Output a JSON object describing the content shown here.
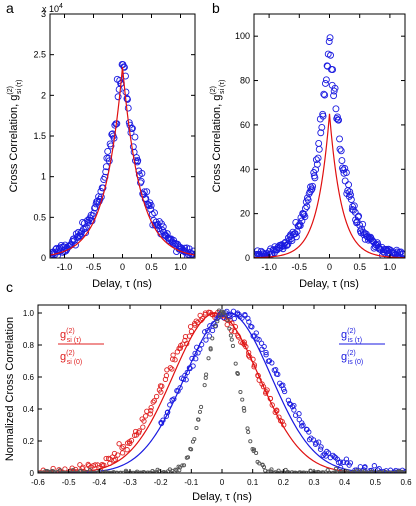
{
  "colors": {
    "data_blue": "#1a1ae0",
    "fit_red": "#e01010",
    "red_points": "#e02020",
    "gray": "#555555",
    "axis": "#000000"
  },
  "chart_data": [
    {
      "panel": "a",
      "type": "scatter",
      "xlabel": "Delay, τ (ns)",
      "ylabel": "Cross Correlation, g",
      "ylabel_sup": "(2)",
      "ylabel_sub": "si (τ)",
      "y_multiplier": "x 10",
      "y_multiplier_exp": "4",
      "xlim": [
        -1.25,
        1.25
      ],
      "ylim": [
        0,
        3
      ],
      "xticks": [
        -1.0,
        -0.5,
        0,
        0.5,
        1.0
      ],
      "xtick_labels": [
        "-1.0",
        "-0.5",
        "0",
        "0.5",
        "1.0"
      ],
      "yticks": [
        0,
        0.5,
        1,
        1.5,
        2,
        2.5,
        3
      ],
      "ytick_labels": [
        "0",
        "0.5",
        "1",
        "1.5",
        "2",
        "2.5",
        "3"
      ],
      "series": [
        {
          "role": "points",
          "marker": "circle",
          "color": "#1a1ae0",
          "peak": 2.45,
          "tau": 0.34,
          "x_range": [
            -1.22,
            1.22
          ],
          "count": 180
        },
        {
          "role": "fit",
          "marker": "line",
          "color": "#e01010",
          "peak": 2.35,
          "tau": 0.3
        }
      ]
    },
    {
      "panel": "b",
      "type": "scatter",
      "xlabel": "Delay, τ (ns)",
      "ylabel": "Cross Correlation, g",
      "ylabel_sup": "(2)",
      "ylabel_sub": "si (τ)",
      "xlim": [
        -1.25,
        1.25
      ],
      "ylim": [
        0,
        110
      ],
      "xticks": [
        -1.0,
        -0.5,
        0,
        0.5,
        1.0
      ],
      "xtick_labels": [
        "-1.0",
        "-0.5",
        "0",
        "0.5",
        "1.0"
      ],
      "yticks": [
        0,
        20,
        40,
        60,
        80,
        100
      ],
      "ytick_labels": [
        "0",
        "20",
        "40",
        "60",
        "80",
        "100"
      ],
      "series": [
        {
          "role": "points",
          "marker": "circle",
          "color": "#1a1ae0",
          "peak": 98,
          "tau": 0.27,
          "x_range": [
            -1.22,
            1.22
          ],
          "count": 200
        },
        {
          "role": "fit",
          "marker": "line",
          "color": "#e01010",
          "peak": 65,
          "tau": 0.2
        }
      ]
    },
    {
      "panel": "c",
      "type": "scatter",
      "xlabel": "Delay, τ (ns)",
      "ylabel": "Normalized Cross Correlation",
      "xlim": [
        -0.6,
        0.6
      ],
      "ylim": [
        0,
        1.05
      ],
      "xticks": [
        -0.6,
        -0.5,
        -0.4,
        -0.3,
        -0.2,
        -0.1,
        0,
        0.1,
        0.2,
        0.3,
        0.4,
        0.5,
        0.6
      ],
      "xtick_labels": [
        "-0.6",
        "-0.5",
        "-0.4",
        "-0.3",
        "-0.2",
        "-0.1",
        "0",
        "0.1",
        "0.2",
        "0.3",
        "0.4",
        "0.5",
        "0.6"
      ],
      "yticks": [
        0,
        0.2,
        0.4,
        0.6,
        0.8,
        1.0
      ],
      "ytick_labels": [
        "0",
        "0.2",
        "0.4",
        "0.6",
        "0.8",
        "1.0"
      ],
      "legend_left": {
        "num": "g",
        "num_sup": "(2)",
        "num_sub": "si (τ)",
        "den": "g",
        "den_sup": "(2)",
        "den_sub": "si (0)",
        "color": "#e02020"
      },
      "legend_right": {
        "num": "g",
        "num_sup": "(2)",
        "num_sub": "is (τ)",
        "den": "g",
        "den_sup": "(2)",
        "den_sub": "is (0)",
        "color": "#1a1ae0"
      },
      "series": [
        {
          "role": "red_points",
          "marker": "circle",
          "color": "#e02020",
          "center": -0.03,
          "sigma": 0.15,
          "x_range": [
            -0.6,
            0.2
          ],
          "count": 160
        },
        {
          "role": "red_fit",
          "marker": "line",
          "color": "#e01010",
          "center": -0.02,
          "sigma": 0.14
        },
        {
          "role": "blue_points",
          "marker": "circle",
          "color": "#1a1ae0",
          "center": 0.03,
          "sigma": 0.15,
          "x_range": [
            -0.2,
            0.6
          ],
          "count": 160
        },
        {
          "role": "blue_fit",
          "marker": "line",
          "color": "#1a1ae0",
          "center": 0.02,
          "sigma": 0.14
        },
        {
          "role": "instrument",
          "marker": "circle",
          "color": "#555555",
          "center": 0.0,
          "sigma": 0.052,
          "x_range": [
            -0.6,
            0.6
          ],
          "count": 230
        }
      ]
    }
  ],
  "panels": {
    "a": "a",
    "b": "b",
    "c": "c"
  }
}
